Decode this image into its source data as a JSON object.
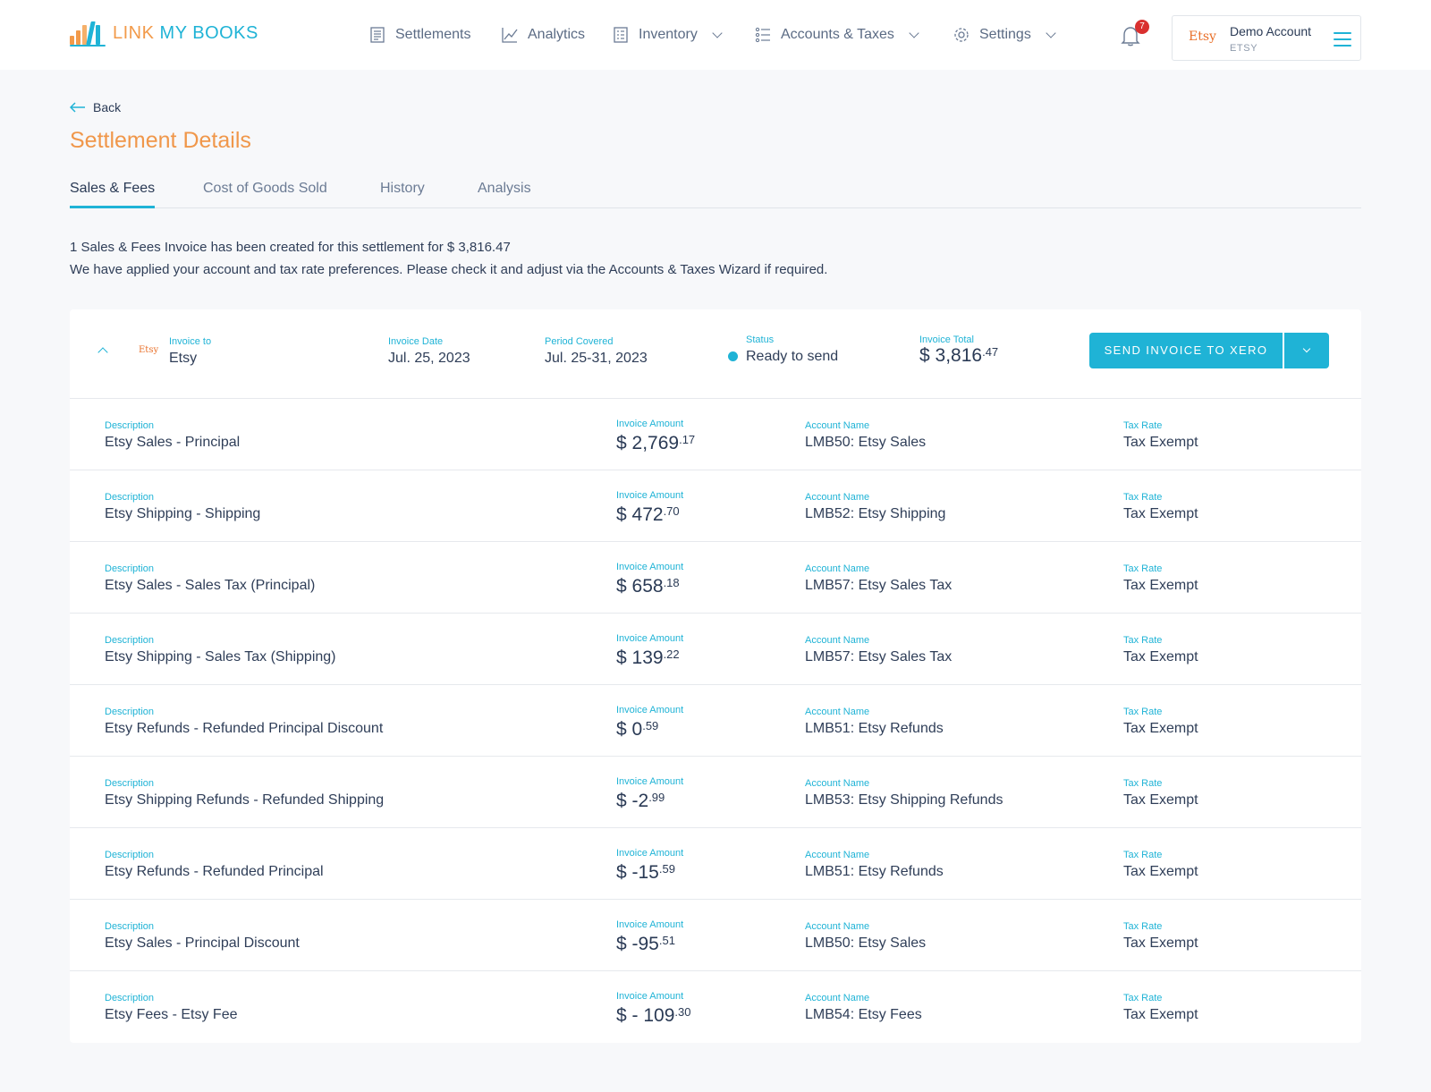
{
  "brand": {
    "part1": "LINK ",
    "part2": "MY BOOKS"
  },
  "nav": [
    {
      "label": "Settlements",
      "icon": "document-icon",
      "dropdown": false
    },
    {
      "label": "Analytics",
      "icon": "line-chart-icon",
      "dropdown": false
    },
    {
      "label": "Inventory",
      "icon": "clipboard-icon",
      "dropdown": true
    },
    {
      "label": "Accounts & Taxes",
      "icon": "list-icon",
      "dropdown": true
    },
    {
      "label": "Settings",
      "icon": "gear-icon",
      "dropdown": true
    }
  ],
  "notifications": {
    "count": "7"
  },
  "account": {
    "marketplace": "Etsy",
    "name": "Demo Account",
    "sub": "ETSY"
  },
  "back_label": "Back",
  "page_title": "Settlement Details",
  "tabs": [
    {
      "label": "Sales & Fees",
      "active": true
    },
    {
      "label": "Cost of Goods Sold",
      "active": false
    },
    {
      "label": "History",
      "active": false
    },
    {
      "label": "Analysis",
      "active": false
    }
  ],
  "info": {
    "line1": "1 Sales & Fees Invoice has been created for this settlement for $ 3,816.47",
    "line2": "We have applied your account and tax rate preferences. Please check it and adjust via the Accounts & Taxes Wizard if required."
  },
  "invoice": {
    "logo_text": "Etsy",
    "invoice_to_label": "Invoice to",
    "invoice_to": "Etsy",
    "date_label": "Invoice Date",
    "date": "Jul. 25, 2023",
    "period_label": "Period Covered",
    "period": "Jul. 25-31, 2023",
    "status_label": "Status",
    "status": "Ready to send",
    "total_label": "Invoice Total",
    "total_main": "$ 3,816",
    "total_cents": ".47",
    "send_button": "SEND INVOICE TO XERO"
  },
  "labels": {
    "description": "Description",
    "amount": "Invoice Amount",
    "account": "Account Name",
    "tax": "Tax Rate"
  },
  "lines": [
    {
      "description": "Etsy Sales - Principal",
      "amount_main": "$ 2,769",
      "amount_cents": ".17",
      "account": "LMB50: Etsy Sales",
      "tax": "Tax Exempt"
    },
    {
      "description": "Etsy Shipping - Shipping",
      "amount_main": "$ 472",
      "amount_cents": ".70",
      "account": "LMB52: Etsy Shipping",
      "tax": "Tax Exempt"
    },
    {
      "description": "Etsy Sales - Sales Tax (Principal)",
      "amount_main": "$ 658",
      "amount_cents": ".18",
      "account": "LMB57: Etsy Sales Tax",
      "tax": "Tax Exempt"
    },
    {
      "description": "Etsy Shipping - Sales Tax (Shipping)",
      "amount_main": "$ 139",
      "amount_cents": ".22",
      "account": "LMB57: Etsy Sales Tax",
      "tax": "Tax Exempt"
    },
    {
      "description": "Etsy Refunds - Refunded Principal Discount",
      "amount_main": "$ 0",
      "amount_cents": ".59",
      "account": "LMB51: Etsy Refunds",
      "tax": "Tax Exempt"
    },
    {
      "description": "Etsy Shipping Refunds - Refunded Shipping",
      "amount_main": "$ -2",
      "amount_cents": ".99",
      "account": "LMB53: Etsy Shipping Refunds",
      "tax": "Tax Exempt"
    },
    {
      "description": "Etsy Refunds - Refunded Principal",
      "amount_main": "$ -15",
      "amount_cents": ".59",
      "account": "LMB51: Etsy Refunds",
      "tax": "Tax Exempt"
    },
    {
      "description": "Etsy Sales - Principal Discount",
      "amount_main": "$ -95",
      "amount_cents": ".51",
      "account": "LMB50: Etsy Sales",
      "tax": "Tax Exempt"
    },
    {
      "description": "Etsy Fees - Etsy Fee",
      "amount_main": "$ - 109",
      "amount_cents": ".30",
      "account": "LMB54: Etsy Fees",
      "tax": "Tax Exempt"
    }
  ],
  "colors": {
    "accent": "#1fb3d6",
    "brand_orange": "#f29a4a",
    "etsy": "#e9702a",
    "text": "#2a3a55",
    "badge": "#d9302f"
  }
}
